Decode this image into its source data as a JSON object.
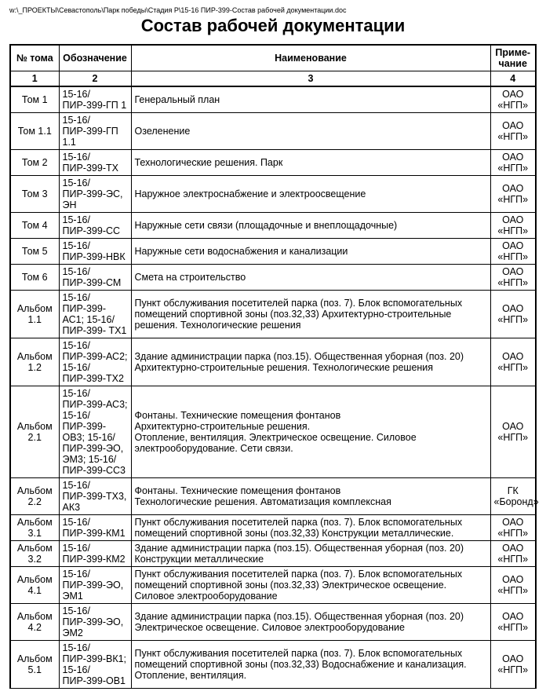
{
  "filepath": "w:\\_ПРОЕКТЫ\\Севастополь\\Парк победы\\Стадия Р\\15-16 ПИР-399-Состав рабочей документации.doc",
  "title": "Состав рабочей документации",
  "headers": {
    "num": "№ тома",
    "code": "Обозначение",
    "name": "Наименование",
    "note": "Приме-чание"
  },
  "numrow": {
    "c1": "1",
    "c2": "2",
    "c3": "3",
    "c4": "4"
  },
  "rows": [
    {
      "num": "Том 1",
      "code": "15-16/ПИР-399-ГП 1",
      "name": "Генеральный план",
      "note": "ОАО «НГП»"
    },
    {
      "num": "Том 1.1",
      "code": "15-16/ПИР-399-ГП 1.1",
      "name": "Озеленение",
      "note": "ОАО «НГП»"
    },
    {
      "num": "Том 2",
      "code": "15-16/ПИР-399-ТХ",
      "name": "Технологические решения. Парк",
      "note": "ОАО «НГП»"
    },
    {
      "num": "Том 3",
      "code": "15-16/ПИР-399-ЭС, ЭН",
      "name": "Наружное электроснабжение и электроосвещение",
      "note": "ОАО «НГП»"
    },
    {
      "num": "Том 4",
      "code": "15-16/ПИР-399-СС",
      "name": "Наружные сети связи (площадочные и внеплощадочные)",
      "note": "ОАО «НГП»"
    },
    {
      "num": "Том 5",
      "code": "15-16/ПИР-399-НВК",
      "name": "Наружные сети водоснабжения и канализации",
      "note": "ОАО «НГП»"
    },
    {
      "num": "Том 6",
      "code": "15-16/ПИР-399-СМ",
      "name": "Смета на строительство",
      "note": "ОАО «НГП»"
    },
    {
      "num": "Альбом 1.1",
      "code": "15-16/ПИР-399- АС1; 15-16/ПИР-399- ТХ1",
      "name": "Пункт обслуживания посетителей парка (поз. 7). Блок вспомогательных помещений спортивной зоны (поз.32,33) Архитектурно-строительные решения. Технологические решения",
      "note": "ОАО «НГП»"
    },
    {
      "num": "Альбом 1.2",
      "code": "15-16/ПИР-399-АС2; 15-16/ПИР-399-ТХ2",
      "name": "Здание администрации парка (поз.15). Общественная уборная (поз. 20)\nАрхитектурно-строительные решения. Технологические решения",
      "note": "ОАО «НГП»"
    },
    {
      "num": "Альбом 2.1",
      "code": "15-16/ПИР-399-АС3; 15-16/ПИР-399-ОВ3; 15-16/ПИР-399-ЭО, ЭМ3; 15-16/ПИР-399-СС3",
      "name": "Фонтаны. Технические помещения фонтанов\nАрхитектурно-строительные решения.\nОтопление, вентиляция. Электрическое освещение. Силовое электрооборудование. Сети связи.",
      "note": "ОАО «НГП»"
    },
    {
      "num": "Альбом 2.2",
      "code": "15-16/ПИР-399-ТХ3, АК3",
      "name": "Фонтаны. Технические помещения фонтанов\nТехнологические решения.  Автоматизация комплексная",
      "note": "ГК «Боронд»"
    },
    {
      "num": "Альбом 3.1",
      "code": "15-16/ПИР-399-КМ1",
      "name": "Пункт обслуживания посетителей парка (поз. 7). Блок вспомогательных помещений спортивной зоны (поз.32,33) Конструкции металлические.",
      "note": "ОАО «НГП»"
    },
    {
      "num": "Альбом 3.2",
      "code": "15-16/ПИР-399-КМ2",
      "name": "Здание администрации парка (поз.15). Общественная уборная (поз. 20)\nКонструкции металлические",
      "note": "ОАО «НГП»"
    },
    {
      "num": "Альбом 4.1",
      "code": "15-16/ПИР-399-ЭО, ЭМ1",
      "name": "Пункт обслуживания посетителей парка (поз. 7). Блок вспомогательных помещений спортивной зоны (поз.32,33) Электрическое освещение. Силовое электрооборудование",
      "note": "ОАО «НГП»"
    },
    {
      "num": "Альбом 4.2",
      "code": "15-16/ПИР-399-ЭО, ЭМ2",
      "name": "Здание администрации парка (поз.15). Общественная уборная (поз. 20)\nЭлектрическое освещение. Силовое электрооборудование",
      "note": "ОАО «НГП»"
    },
    {
      "num": "Альбом 5.1",
      "code": "15-16/ПИР-399-ВК1; 15-16/ПИР-399-ОВ1",
      "name": "Пункт обслуживания посетителей парка (поз. 7). Блок вспомогательных помещений спортивной зоны (поз.32,33) Водоснабжение и канализация. Отопление, вентиляция.",
      "note": "ОАО «НГП»"
    }
  ]
}
